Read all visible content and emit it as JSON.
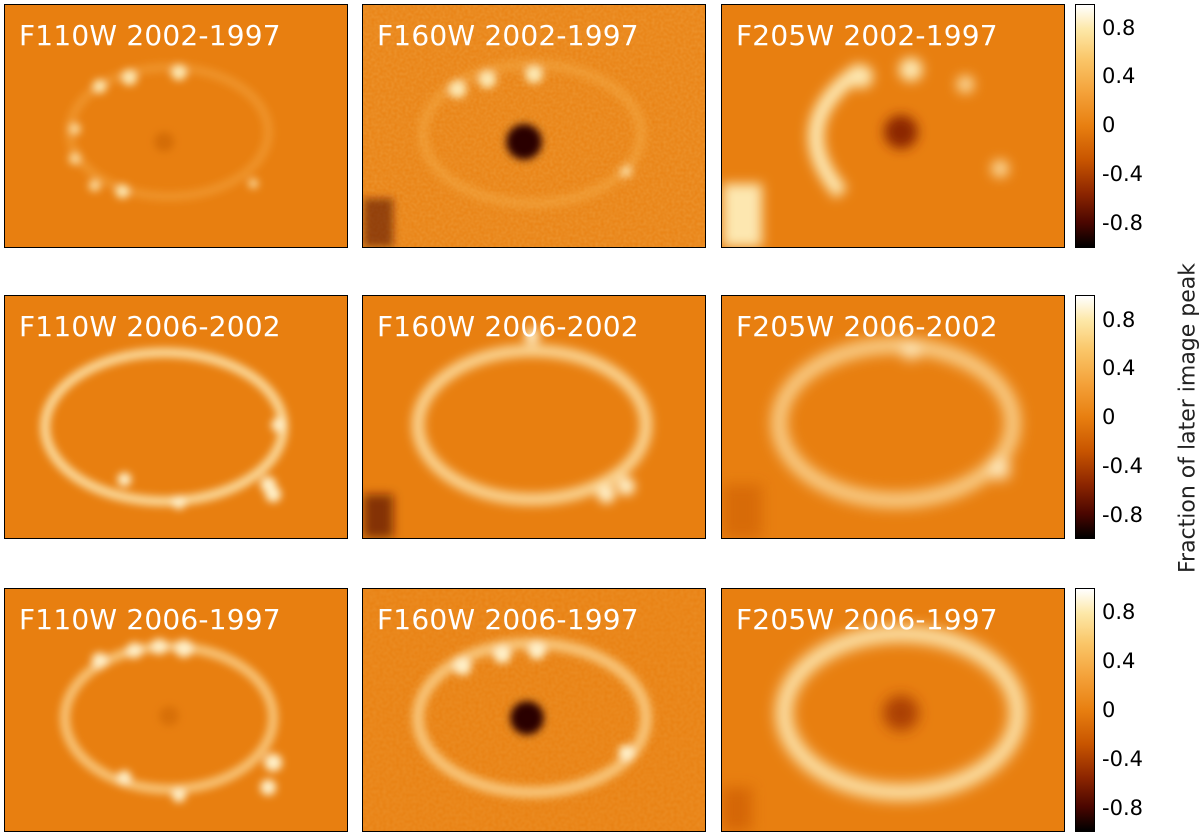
{
  "panels": [
    {
      "label": "F110W 2002-1997",
      "bg": "#e98012",
      "blobs": "ring-spots-small",
      "center": "faint-dark"
    },
    {
      "label": "F160W 2002-1997",
      "bg": "#e88012",
      "blobs": "ring-spots-noisy",
      "center": "dark"
    },
    {
      "label": "F205W 2002-1997",
      "bg": "#ec8a1c",
      "blobs": "ring-arc",
      "center": "medium-dark"
    },
    {
      "label": "F110W 2006-2002",
      "bg": "#ea8214",
      "blobs": "ring-full",
      "center": "none"
    },
    {
      "label": "F160W 2006-2002",
      "bg": "#ea8214",
      "blobs": "ring-full",
      "center": "none"
    },
    {
      "label": "F205W 2006-2002",
      "bg": "#ec8618",
      "blobs": "ring-full-soft",
      "center": "none"
    },
    {
      "label": "F110W 2006-1997",
      "bg": "#ea8214",
      "blobs": "ring-spots-bright",
      "center": "faint-dark"
    },
    {
      "label": "F160W 2006-1997",
      "bg": "#e88012",
      "blobs": "ring-spots-bright",
      "center": "dark"
    },
    {
      "label": "F205W 2006-1997",
      "bg": "#ec8618",
      "blobs": "ring-full-bright",
      "center": "medium-dark"
    }
  ],
  "colorbar": {
    "title": "Fraction of later image peak",
    "ticks": [
      "0.8",
      "0.4",
      "0",
      "-0.4",
      "-0.8"
    ]
  }
}
